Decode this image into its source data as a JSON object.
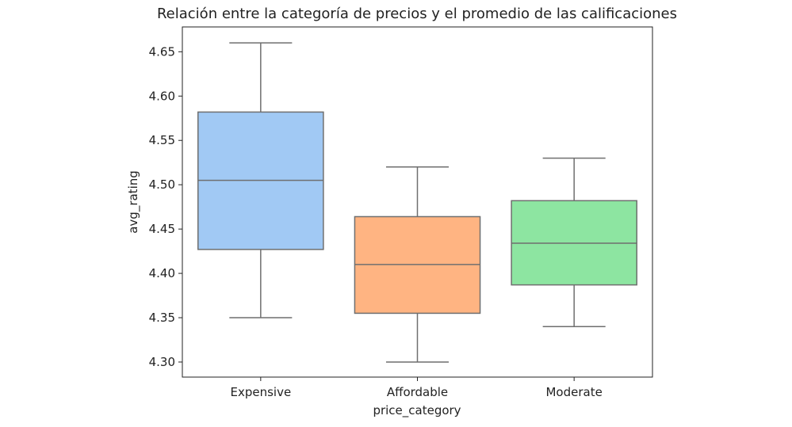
{
  "chart_data": {
    "type": "boxplot",
    "title": "Relación entre la categoría de precios y el promedio de las calificaciones",
    "xlabel": "price_category",
    "ylabel": "avg_rating",
    "ylim": [
      4.283,
      4.678
    ],
    "yticks": [
      "4.30",
      "4.35",
      "4.40",
      "4.45",
      "4.50",
      "4.55",
      "4.60",
      "4.65"
    ],
    "grid": false,
    "categories": [
      "Expensive",
      "Affordable",
      "Moderate"
    ],
    "boxes": [
      {
        "category": "Expensive",
        "whisker_low": 4.35,
        "q1": 4.427,
        "median": 4.505,
        "q3": 4.582,
        "whisker_high": 4.66,
        "color": "#a1c9f4"
      },
      {
        "category": "Affordable",
        "whisker_low": 4.3,
        "q1": 4.355,
        "median": 4.41,
        "q3": 4.464,
        "whisker_high": 4.52,
        "color": "#ffb482"
      },
      {
        "category": "Moderate",
        "whisker_low": 4.34,
        "q1": 4.387,
        "median": 4.434,
        "q3": 4.482,
        "whisker_high": 4.53,
        "color": "#8de5a1"
      }
    ],
    "line_color": "#6f6f6f"
  }
}
